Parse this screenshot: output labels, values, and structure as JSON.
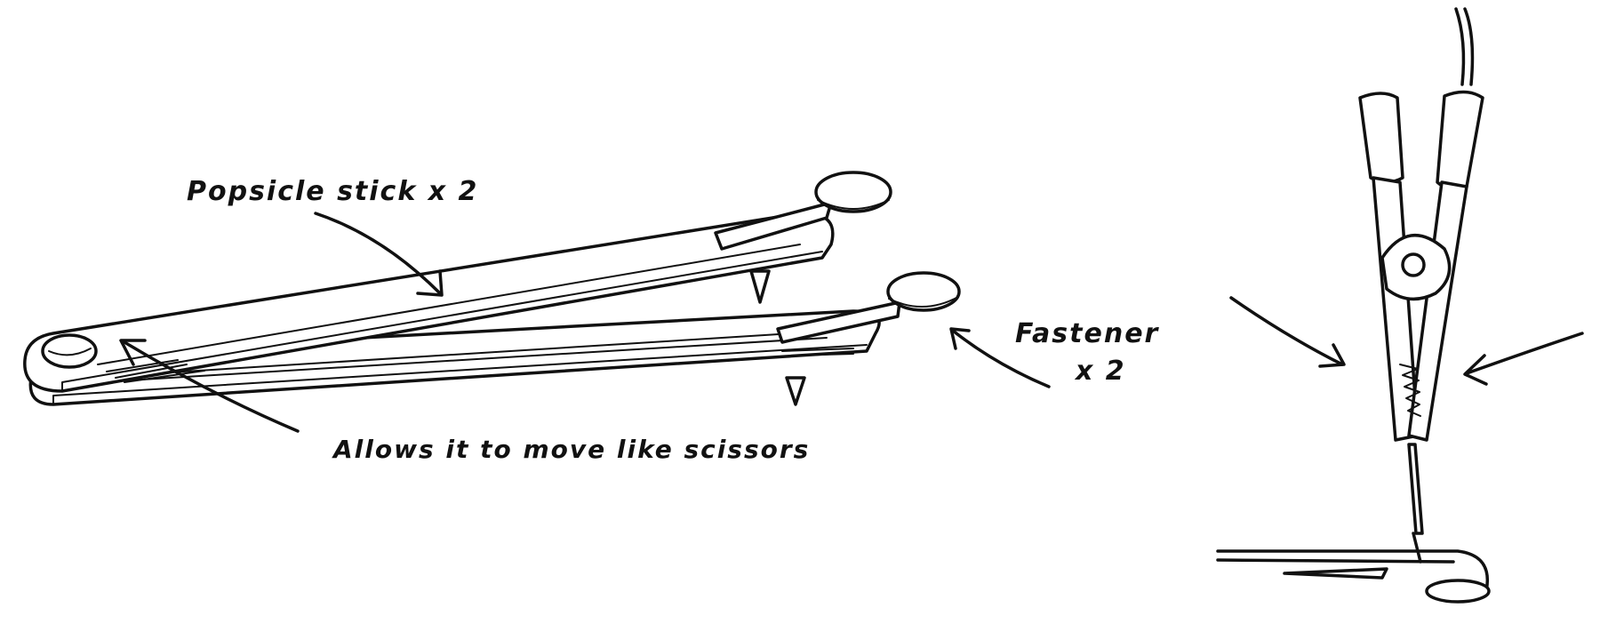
{
  "labels": {
    "popsicle": "Popsicle stick x 2",
    "fastener_line1": "Fastener",
    "fastener_line2": "x 2",
    "allows": "Allows it to move like scissors"
  }
}
